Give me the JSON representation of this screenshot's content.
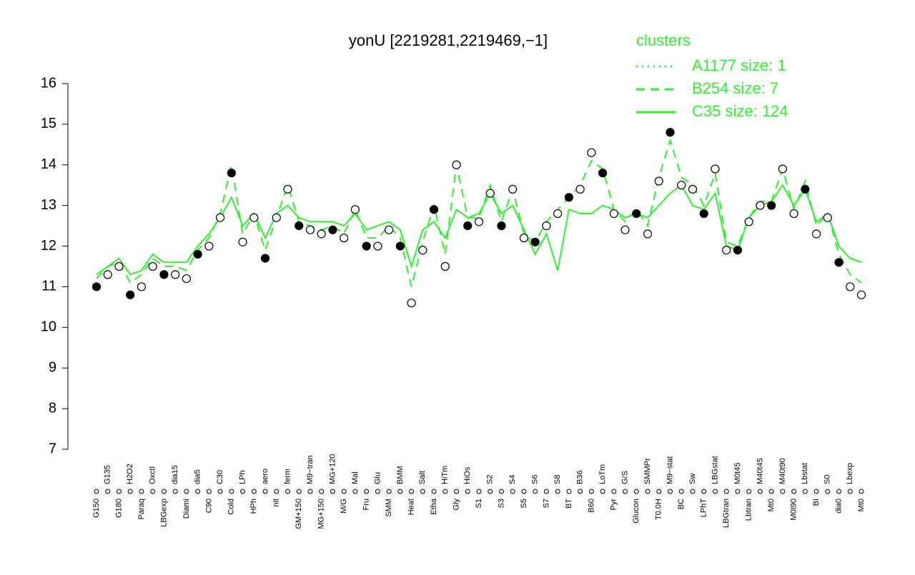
{
  "chart_data": {
    "type": "line",
    "title": "yonU [2219281,2219469,−1]",
    "categories": [
      "G150",
      "G135",
      "G180",
      "H2O2",
      "Paraq",
      "Oxctl",
      "LBGexp",
      "dia15",
      "Diami",
      "dia5",
      "C90",
      "C30",
      "Cold",
      "LPh",
      "HPh",
      "aero",
      "nit",
      "ferm",
      "GM+150",
      "M9−tran",
      "MG+150",
      "MG+120",
      "M/G",
      "Mal",
      "Fru",
      "Glu",
      "SMM",
      "BMM",
      "Heat",
      "Salt",
      "Etha",
      "HiTm",
      "Gly",
      "HiOs",
      "S1",
      "S2",
      "S3",
      "S4",
      "S5",
      "S6",
      "S7",
      "S8",
      "BT",
      "B36",
      "B60",
      "LoTm",
      "Pyr",
      "G/S",
      "Glucon",
      "SMMPr",
      "T0.0H",
      "M9−stat",
      "BC",
      "Sw",
      "LPhT",
      "LBGstat",
      "LBGtran",
      "M0t45",
      "Lbtran",
      "M40t45",
      "Mt0",
      "M40t90",
      "M0t90",
      "Lbstat",
      "BI",
      "S0",
      "dia0",
      "Lbexp",
      "Mt0"
    ],
    "points": {
      "color": "#000000",
      "values": [
        11.0,
        11.3,
        11.5,
        10.8,
        11.0,
        11.5,
        11.3,
        11.3,
        11.2,
        11.8,
        12.0,
        12.7,
        13.8,
        12.1,
        12.7,
        11.7,
        12.7,
        13.4,
        12.5,
        12.4,
        12.3,
        12.4,
        12.2,
        12.9,
        12.0,
        12.0,
        12.4,
        12.0,
        10.6,
        11.9,
        12.9,
        11.5,
        14.0,
        12.5,
        12.6,
        13.3,
        12.5,
        13.4,
        12.2,
        12.1,
        12.5,
        12.8,
        13.2,
        13.4,
        14.3,
        13.8,
        12.8,
        12.4,
        12.8,
        12.3,
        13.6,
        14.8,
        13.5,
        13.4,
        12.8,
        13.9,
        11.9,
        11.9,
        12.6,
        13.0,
        13.0,
        13.9,
        12.8,
        13.4,
        12.3,
        12.7,
        11.6,
        11.0,
        10.8
      ]
    },
    "series": [
      {
        "name": "A1177 size: 1",
        "color": "#33ee33",
        "dash": "dotted",
        "values": [
          null,
          null,
          null,
          null,
          null,
          null,
          null,
          null,
          null,
          null,
          null,
          null,
          null,
          null,
          null,
          null,
          null,
          null,
          null,
          null,
          null,
          null,
          null,
          null,
          null,
          null,
          null,
          null,
          null,
          null,
          null,
          null,
          null,
          null,
          null,
          null,
          null,
          null,
          null,
          null,
          null,
          null,
          null,
          null,
          null,
          null,
          null,
          null,
          null,
          null,
          null,
          null,
          null,
          null,
          null,
          null,
          null,
          null,
          null,
          null,
          null,
          null,
          null,
          null,
          null,
          null,
          null,
          null,
          null
        ]
      },
      {
        "name": "B254 size: 7",
        "color": "#33ee33",
        "dash": "dashed",
        "values": [
          11.2,
          11.5,
          11.6,
          11.1,
          11.3,
          11.7,
          11.5,
          11.5,
          11.4,
          11.9,
          12.2,
          12.8,
          14.0,
          12.3,
          12.8,
          11.9,
          12.7,
          13.5,
          12.6,
          12.5,
          12.4,
          12.5,
          12.3,
          12.9,
          12.2,
          12.2,
          12.5,
          12.2,
          11.0,
          12.1,
          13.0,
          11.8,
          14.0,
          12.7,
          12.7,
          13.5,
          12.6,
          13.4,
          12.3,
          12.1,
          12.6,
          12.9,
          13.2,
          13.5,
          14.1,
          13.9,
          12.9,
          12.6,
          12.9,
          12.5,
          13.7,
          14.6,
          13.7,
          13.5,
          13.0,
          13.8,
          12.1,
          12.0,
          12.7,
          13.1,
          13.1,
          13.9,
          12.9,
          13.6,
          12.5,
          12.8,
          11.8,
          11.3,
          11.1
        ]
      },
      {
        "name": "C35 size: 124",
        "color": "#33ee33",
        "dash": "solid",
        "values": [
          11.3,
          11.5,
          11.7,
          11.3,
          11.4,
          11.8,
          11.6,
          11.6,
          11.6,
          12.0,
          12.3,
          12.7,
          13.2,
          12.5,
          12.8,
          12.2,
          12.8,
          13.0,
          12.7,
          12.6,
          12.6,
          12.6,
          12.5,
          12.8,
          12.4,
          12.5,
          12.6,
          12.4,
          11.5,
          12.4,
          12.6,
          12.2,
          12.9,
          12.7,
          12.8,
          13.3,
          12.8,
          13.0,
          12.4,
          11.8,
          12.3,
          11.4,
          12.9,
          12.8,
          12.8,
          13.0,
          12.9,
          12.7,
          12.8,
          12.7,
          13.0,
          13.3,
          13.5,
          13.0,
          12.9,
          13.3,
          12.0,
          11.9,
          12.7,
          13.0,
          13.1,
          13.5,
          13.0,
          13.4,
          12.6,
          12.8,
          12.0,
          11.7,
          11.6
        ]
      }
    ],
    "ylim": [
      7,
      16
    ],
    "yticks": [
      7,
      8,
      9,
      10,
      11,
      12,
      13,
      14,
      15,
      16
    ],
    "legend_title": "clusters",
    "legend": "top-right"
  }
}
